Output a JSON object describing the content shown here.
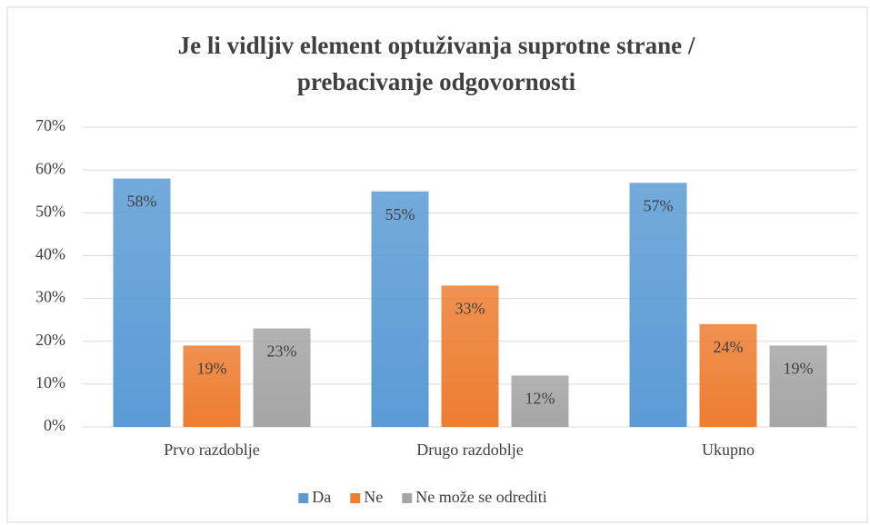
{
  "chart_data": {
    "type": "bar",
    "title": "Je li vidljiv element optuživanja suprotne strane / prebacivanje odgovornosti",
    "categories": [
      "Prvo razdoblje",
      "Drugo razdoblje",
      "Ukupno"
    ],
    "series": [
      {
        "name": "Da",
        "color": "#5b9bd5",
        "values": [
          58,
          55,
          57
        ],
        "value_labels": [
          "58%",
          "55%",
          "57%"
        ]
      },
      {
        "name": "Ne",
        "color": "#ed7d31",
        "values": [
          19,
          33,
          24
        ],
        "value_labels": [
          "19%",
          "33%",
          "24%"
        ]
      },
      {
        "name": "Ne može se odrediti",
        "color": "#a5a5a5",
        "values": [
          23,
          12,
          19
        ],
        "value_labels": [
          "23%",
          "12%",
          "19%"
        ]
      }
    ],
    "ylim": [
      0,
      70
    ],
    "yticks": [
      {
        "value": 0,
        "label": "0%"
      },
      {
        "value": 10,
        "label": "10%"
      },
      {
        "value": 20,
        "label": "20%"
      },
      {
        "value": 30,
        "label": "30%"
      },
      {
        "value": 40,
        "label": "40%"
      },
      {
        "value": 50,
        "label": "50%"
      },
      {
        "value": 60,
        "label": "60%"
      },
      {
        "value": 70,
        "label": "70%"
      }
    ],
    "grid": true,
    "legend": "bottom"
  }
}
